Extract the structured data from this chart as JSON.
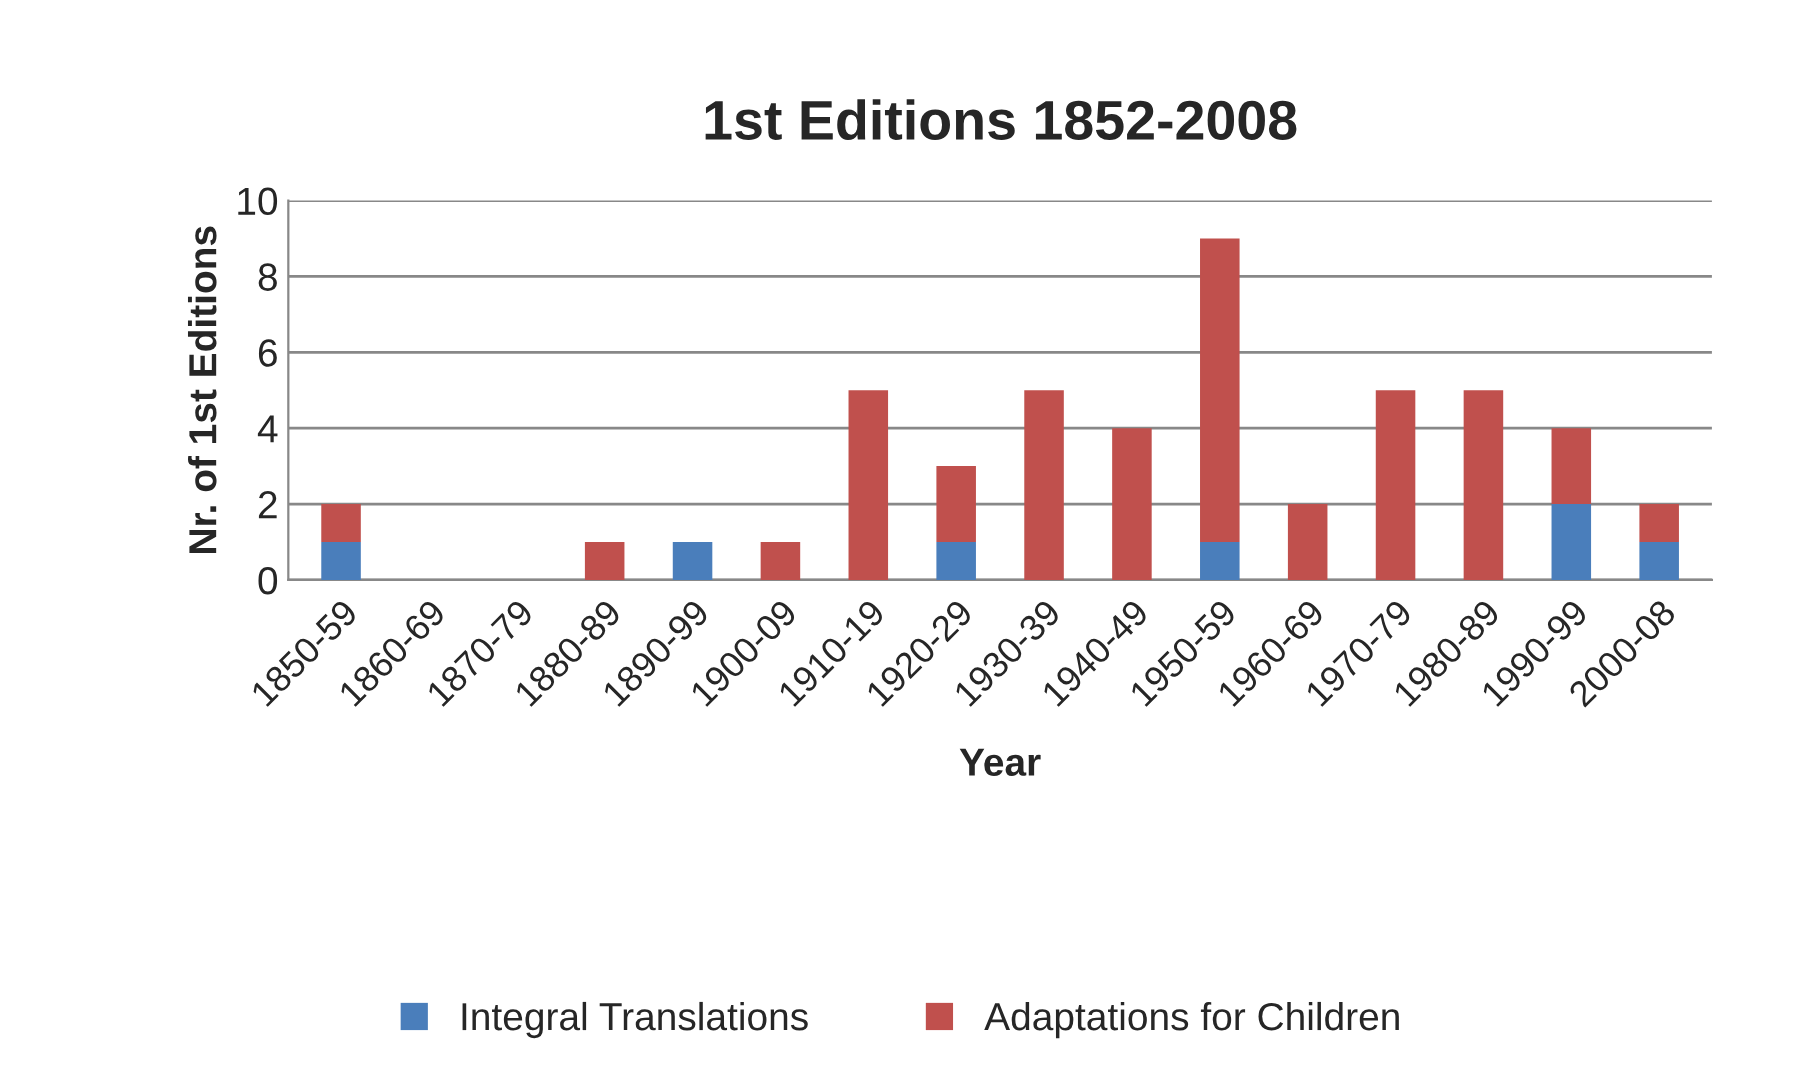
{
  "chart_data": {
    "type": "bar",
    "title": "1st Editions 1852-2008",
    "xlabel": "Year",
    "ylabel": "Nr. of 1st Editions",
    "categories": [
      "1850-59",
      "1860-69",
      "1870-79",
      "1880-89",
      "1890-99",
      "1900-09",
      "1910-19",
      "1920-29",
      "1930-39",
      "1940-49",
      "1950-59",
      "1960-69",
      "1970-79",
      "1980-89",
      "1990-99",
      "2000-08"
    ],
    "stacked": true,
    "series": [
      {
        "name": "Integral Translations",
        "color": "#4a7ebb",
        "values": [
          1,
          0,
          0,
          0,
          1,
          0,
          0,
          1,
          0,
          0,
          1,
          0,
          0,
          0,
          2,
          1
        ]
      },
      {
        "name": "Adaptations for Children",
        "color": "#c0504d",
        "values": [
          1,
          0,
          0,
          1,
          0,
          1,
          5,
          2,
          5,
          4,
          8,
          2,
          5,
          5,
          2,
          1
        ]
      }
    ],
    "ylim": [
      0,
      10
    ],
    "yticks": [
      0,
      2,
      4,
      6,
      8,
      10
    ],
    "grid": "y",
    "legend": "bottom"
  }
}
